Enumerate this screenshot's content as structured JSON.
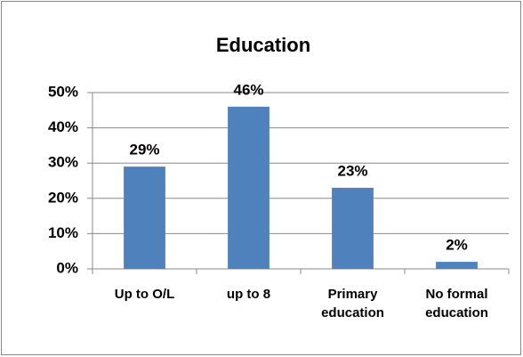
{
  "chart_data": {
    "type": "bar",
    "title": "Education",
    "categories": [
      "Up to O/L",
      "up to 8",
      "Primary education",
      "No formal education"
    ],
    "values": [
      29,
      46,
      23,
      2
    ],
    "value_labels": [
      "29%",
      "46%",
      "23%",
      "2%"
    ],
    "color": "#4f81bd",
    "ylim": [
      0,
      50
    ],
    "yticks": [
      {
        "value": 0,
        "label": "0%"
      },
      {
        "value": 10,
        "label": "10%"
      },
      {
        "value": 20,
        "label": "20%"
      },
      {
        "value": 30,
        "label": "30%"
      },
      {
        "value": 40,
        "label": "40%"
      },
      {
        "value": 50,
        "label": "50%"
      }
    ],
    "grid": true
  }
}
